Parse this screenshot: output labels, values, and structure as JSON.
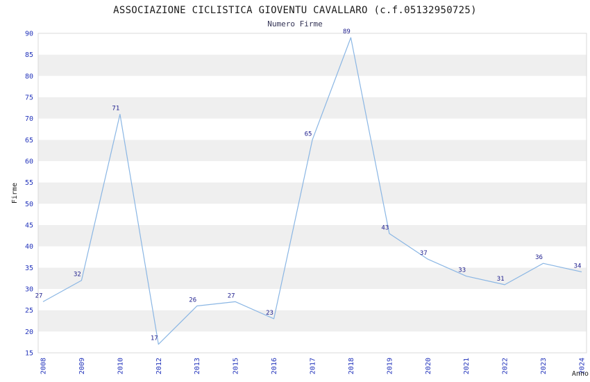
{
  "title": "ASSOCIAZIONE CICLISTICA GIOVENTU CAVALLARO (c.f.05132950725)",
  "subtitle": "Numero Firme",
  "chart_data": {
    "type": "line",
    "title": "ASSOCIAZIONE CICLISTICA GIOVENTU CAVALLARO (c.f.05132950725)",
    "subtitle": "Numero Firme",
    "categories": [
      "2008",
      "2009",
      "2010",
      "2012",
      "2013",
      "2015",
      "2016",
      "2017",
      "2018",
      "2019",
      "2020",
      "2021",
      "2022",
      "2023",
      "2024"
    ],
    "values": [
      27,
      32,
      71,
      17,
      26,
      27,
      23,
      65,
      89,
      43,
      37,
      33,
      31,
      36,
      34
    ],
    "xlabel": "Anno",
    "ylabel": "Firme",
    "ylim": [
      15,
      90
    ],
    "ytick_step": 5,
    "grid": "horizontal-alternating-bands",
    "legend": "none",
    "colors": {
      "line": "#8ab6e4",
      "tick_label": "#2233bb",
      "data_label": "#1a1a8c",
      "band_gray": "#efefef",
      "band_white": "#ffffff",
      "frame": "#d8d8d8",
      "title_color": "#1a1a1a",
      "subtitle_color": "#333355",
      "axis_label_color": "#1a1a1a"
    }
  }
}
